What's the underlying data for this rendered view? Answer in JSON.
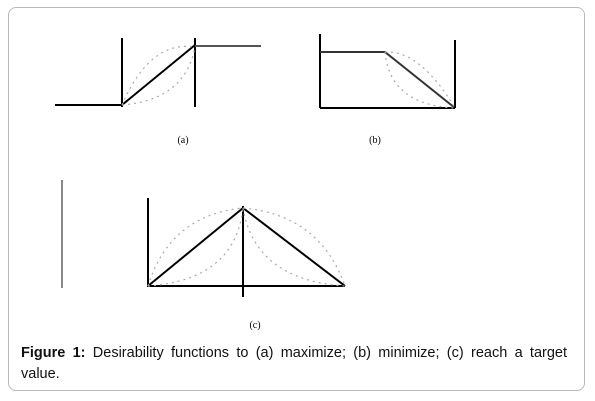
{
  "figure": {
    "panels": [
      {
        "label": "(a)"
      },
      {
        "label": "(b)"
      },
      {
        "label": "(c)"
      }
    ],
    "caption": {
      "label": "Figure 1:",
      "text": "Desirability functions to (a) maximize; (b) minimize; (c) reach a target value."
    }
  }
}
